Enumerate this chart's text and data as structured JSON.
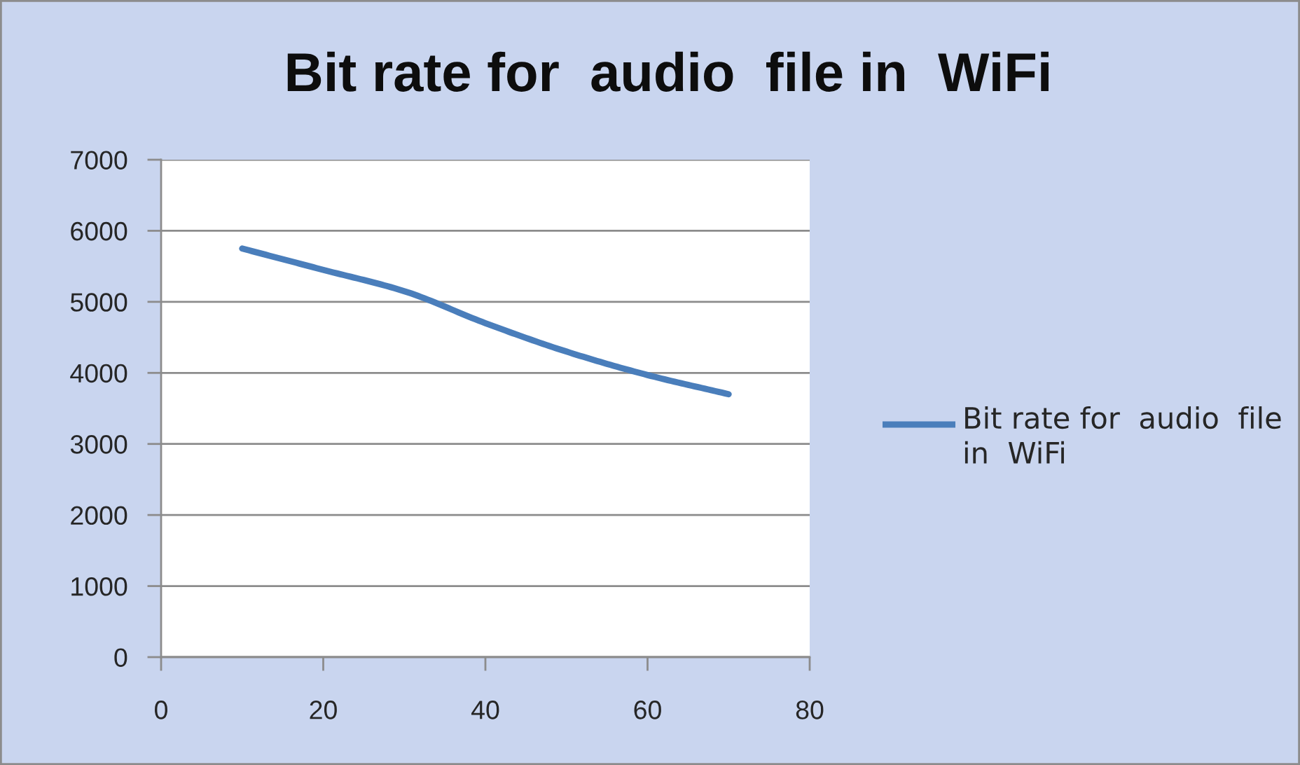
{
  "chart_data": {
    "type": "line",
    "title": "Bit rate for  audio  file in  WiFi",
    "x": [
      10,
      20,
      30,
      40,
      50,
      60,
      70
    ],
    "series": [
      {
        "name": "Bit rate for  audio  file in  WiFi",
        "color": "#4a7ebb",
        "values": [
          5750,
          5450,
          5150,
          4700,
          4300,
          3970,
          3700
        ]
      }
    ],
    "xlim": [
      0,
      80
    ],
    "xticks": [
      0,
      20,
      40,
      60,
      80
    ],
    "ylim": [
      0,
      7000
    ],
    "yticks": [
      0,
      1000,
      2000,
      3000,
      4000,
      5000,
      6000,
      7000
    ],
    "grid": "y",
    "legend": "right",
    "marker": "none",
    "line_style": "solid"
  }
}
